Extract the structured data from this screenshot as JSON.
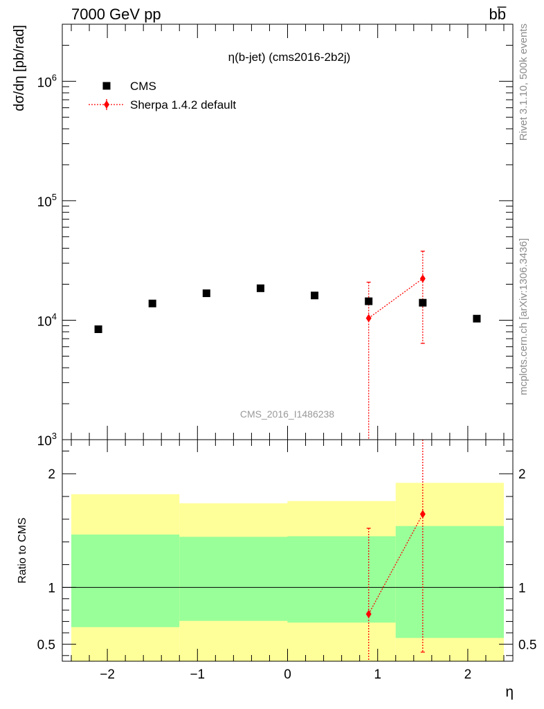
{
  "header": {
    "energy_label": "7000 GeV pp",
    "process_label": "bb̅"
  },
  "side": {
    "rivet_label": "Rivet 3.1.10,  500k events",
    "mcplots_label": "mcplots.cern.ch [arXiv:1306.3436]"
  },
  "colors": {
    "data_marker": "#000000",
    "mc_line": "#ff0000",
    "band_inner": "#99ff99",
    "band_outer": "#ffff99",
    "watermark": "#999999"
  },
  "chart_data": [
    {
      "type": "scatter",
      "title": "η(b-jet) (cms2016-2b2j)",
      "watermark": "CMS_2016_I1486238",
      "ylabel": "dσ/dη [pb/rad]",
      "xlabel": "",
      "xlim": [
        -2.5,
        2.5
      ],
      "ylim": [
        1000,
        3000000
      ],
      "yscale": "log",
      "y_ticks": [
        1000,
        10000,
        100000,
        1000000
      ],
      "y_tick_labels": [
        {
          "base": "10",
          "exp": "3"
        },
        {
          "base": "10",
          "exp": "4"
        },
        {
          "base": "10",
          "exp": "5"
        },
        {
          "base": "10",
          "exp": "6"
        }
      ],
      "legend_position": "top-left",
      "series": [
        {
          "name": "CMS",
          "marker": "square",
          "x": [
            -2.1,
            -1.5,
            -0.9,
            -0.3,
            0.3,
            0.9,
            1.5,
            2.1
          ],
          "y": [
            8400,
            13800,
            16800,
            18500,
            16100,
            14400,
            14000,
            10300
          ]
        },
        {
          "name": "Sherpa 1.4.2 default",
          "marker": "diamond",
          "line": "dotted",
          "x": [
            0.9,
            1.5
          ],
          "y": [
            10400,
            22300
          ],
          "y_low": [
            800,
            6400
          ],
          "y_high": [
            20800,
            37800
          ]
        }
      ]
    },
    {
      "type": "scatter",
      "ylabel": "Ratio to CMS",
      "xlabel": "η",
      "xlim": [
        -2.5,
        2.5
      ],
      "ylim": [
        0.35,
        2.3
      ],
      "y_ticks": [
        0.5,
        1,
        2
      ],
      "y_tick_labels": [
        "0.5",
        "1",
        "2"
      ],
      "x_ticks": [
        -2,
        -1,
        0,
        1,
        2
      ],
      "x_tick_labels": [
        "−2",
        "−1",
        "0",
        "1",
        "2"
      ],
      "reference_line": 1,
      "bands": {
        "edges": [
          -2.4,
          -1.2,
          0.0,
          1.2,
          2.4
        ],
        "inner_low": [
          0.65,
          0.705,
          0.69,
          0.555
        ],
        "inner_high": [
          1.465,
          1.445,
          1.45,
          1.54
        ],
        "outer_low": [
          0.35,
          0.35,
          0.35,
          0.35
        ],
        "outer_high": [
          1.82,
          1.74,
          1.76,
          1.92
        ]
      },
      "series": [
        {
          "name": "Sherpa 1.4.2 default",
          "marker": "diamond",
          "line": "dotted",
          "x": [
            0.9,
            1.5
          ],
          "y": [
            0.765,
            1.645
          ],
          "y_low": [
            0.35,
            0.43
          ],
          "y_high": [
            1.52,
            2.3
          ]
        }
      ]
    }
  ]
}
